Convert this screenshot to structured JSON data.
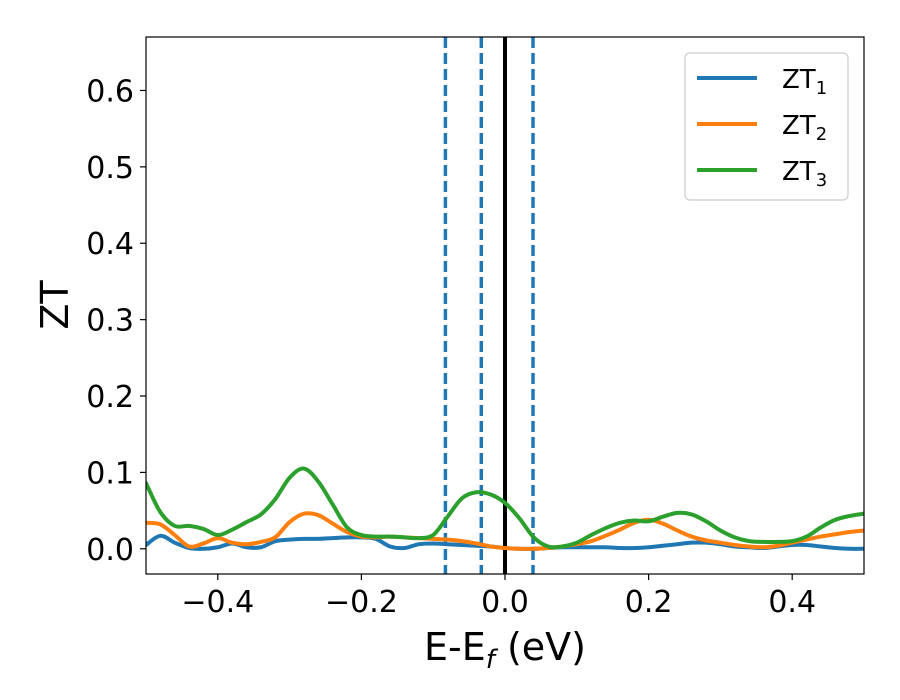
{
  "chart_data": {
    "type": "line",
    "xlabel": {
      "main": "E-E",
      "sub": "f",
      "unit": " (eV)"
    },
    "ylabel": "ZT",
    "xlim": [
      -0.5,
      0.5
    ],
    "ylim": [
      -0.033,
      0.67
    ],
    "x_ticks": [
      -0.4,
      -0.2,
      0.0,
      0.2,
      0.4
    ],
    "x_tick_labels": [
      "−0.4",
      "−0.2",
      "0.0",
      "0.2",
      "0.4"
    ],
    "y_ticks": [
      0.0,
      0.1,
      0.2,
      0.3,
      0.4,
      0.5,
      0.6
    ],
    "y_tick_labels": [
      "0.0",
      "0.1",
      "0.2",
      "0.3",
      "0.4",
      "0.5",
      "0.6"
    ],
    "legend_position": "top-right",
    "grid": false,
    "series": [
      {
        "name": "ZT",
        "sub": "1",
        "color": "#1f77b4",
        "x": [
          -0.5,
          -0.48,
          -0.46,
          -0.44,
          -0.42,
          -0.4,
          -0.38,
          -0.36,
          -0.34,
          -0.32,
          -0.3,
          -0.28,
          -0.26,
          -0.24,
          -0.22,
          -0.2,
          -0.18,
          -0.16,
          -0.14,
          -0.12,
          -0.1,
          -0.08,
          -0.06,
          -0.04,
          -0.02,
          0.0,
          0.02,
          0.04,
          0.06,
          0.08,
          0.1,
          0.12,
          0.14,
          0.16,
          0.18,
          0.2,
          0.22,
          0.24,
          0.26,
          0.28,
          0.3,
          0.32,
          0.34,
          0.36,
          0.38,
          0.4,
          0.42,
          0.44,
          0.46,
          0.48,
          0.5
        ],
        "y": [
          0.005,
          0.017,
          0.008,
          0.001,
          0.0,
          0.002,
          0.007,
          0.002,
          0.002,
          0.01,
          0.012,
          0.013,
          0.013,
          0.014,
          0.015,
          0.015,
          0.013,
          0.003,
          0.001,
          0.006,
          0.007,
          0.006,
          0.005,
          0.004,
          0.003,
          0.001,
          0.0,
          0.0,
          0.001,
          0.002,
          0.002,
          0.002,
          0.002,
          0.001,
          0.001,
          0.002,
          0.004,
          0.006,
          0.008,
          0.008,
          0.006,
          0.003,
          0.002,
          0.001,
          0.003,
          0.005,
          0.005,
          0.003,
          0.001,
          0.0,
          0.0
        ]
      },
      {
        "name": "ZT",
        "sub": "2",
        "color": "#ff7f0e",
        "x": [
          -0.5,
          -0.48,
          -0.46,
          -0.44,
          -0.42,
          -0.4,
          -0.38,
          -0.36,
          -0.34,
          -0.32,
          -0.3,
          -0.28,
          -0.26,
          -0.24,
          -0.22,
          -0.2,
          -0.18,
          -0.16,
          -0.14,
          -0.12,
          -0.1,
          -0.08,
          -0.06,
          -0.04,
          -0.02,
          0.0,
          0.02,
          0.04,
          0.06,
          0.08,
          0.1,
          0.12,
          0.14,
          0.16,
          0.18,
          0.2,
          0.22,
          0.24,
          0.26,
          0.28,
          0.3,
          0.32,
          0.34,
          0.36,
          0.38,
          0.4,
          0.42,
          0.44,
          0.46,
          0.48,
          0.5
        ],
        "y": [
          0.034,
          0.032,
          0.018,
          0.003,
          0.007,
          0.014,
          0.008,
          0.006,
          0.009,
          0.015,
          0.035,
          0.046,
          0.044,
          0.033,
          0.022,
          0.016,
          0.015,
          0.016,
          0.015,
          0.014,
          0.013,
          0.012,
          0.01,
          0.007,
          0.003,
          0.001,
          0.0,
          0.0,
          0.001,
          0.003,
          0.006,
          0.01,
          0.017,
          0.025,
          0.034,
          0.038,
          0.033,
          0.024,
          0.016,
          0.011,
          0.008,
          0.005,
          0.003,
          0.002,
          0.004,
          0.008,
          0.012,
          0.016,
          0.019,
          0.022,
          0.024
        ]
      },
      {
        "name": "ZT",
        "sub": "3",
        "color": "#2ca02c",
        "x": [
          -0.5,
          -0.48,
          -0.46,
          -0.44,
          -0.42,
          -0.4,
          -0.38,
          -0.36,
          -0.34,
          -0.32,
          -0.3,
          -0.28,
          -0.26,
          -0.24,
          -0.22,
          -0.2,
          -0.18,
          -0.16,
          -0.14,
          -0.12,
          -0.1,
          -0.08,
          -0.06,
          -0.04,
          -0.02,
          0.0,
          0.02,
          0.04,
          0.06,
          0.08,
          0.1,
          0.12,
          0.14,
          0.16,
          0.18,
          0.2,
          0.22,
          0.24,
          0.26,
          0.28,
          0.3,
          0.32,
          0.34,
          0.36,
          0.38,
          0.4,
          0.42,
          0.44,
          0.46,
          0.48,
          0.5
        ],
        "y": [
          0.086,
          0.048,
          0.03,
          0.03,
          0.026,
          0.018,
          0.025,
          0.035,
          0.045,
          0.065,
          0.093,
          0.105,
          0.088,
          0.058,
          0.028,
          0.018,
          0.016,
          0.016,
          0.015,
          0.014,
          0.018,
          0.042,
          0.066,
          0.074,
          0.071,
          0.06,
          0.04,
          0.015,
          0.003,
          0.003,
          0.008,
          0.018,
          0.027,
          0.034,
          0.037,
          0.036,
          0.042,
          0.047,
          0.045,
          0.036,
          0.024,
          0.015,
          0.01,
          0.009,
          0.009,
          0.01,
          0.016,
          0.028,
          0.038,
          0.043,
          0.046
        ]
      }
    ],
    "vlines": [
      {
        "x": -0.083,
        "style": "dashed",
        "color": "#1f77b4"
      },
      {
        "x": -0.033,
        "style": "dashed",
        "color": "#1f77b4"
      },
      {
        "x": 0.0,
        "style": "solid",
        "color": "#000000"
      },
      {
        "x": 0.039,
        "style": "dashed",
        "color": "#1f77b4"
      }
    ]
  }
}
